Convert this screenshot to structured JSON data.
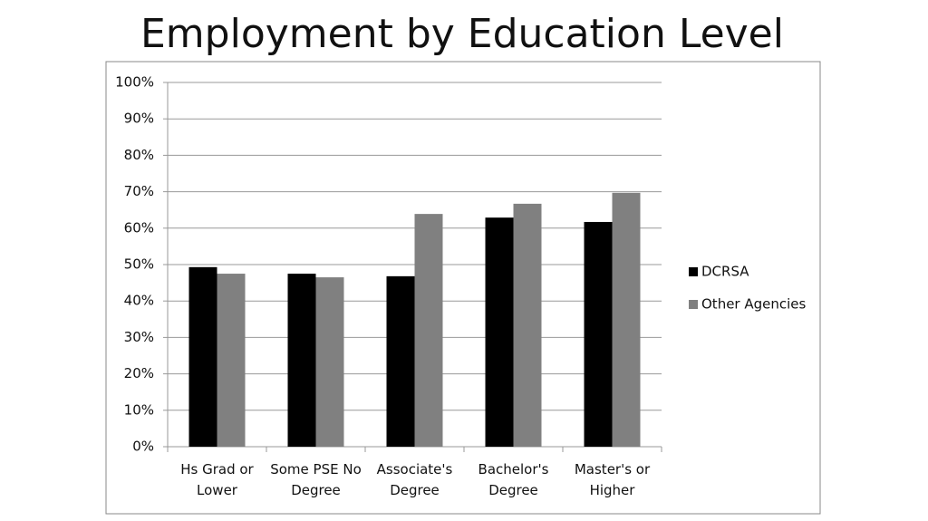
{
  "chart_data": {
    "type": "bar",
    "title": "Employment by Education Level",
    "categories": [
      "Hs Grad or Lower",
      "Some PSE No Degree",
      "Associate's Degree",
      "Bachelor's Degree",
      "Master's or Higher"
    ],
    "series": [
      {
        "name": "DCRSA",
        "color": "#000000",
        "values": [
          49.3,
          47.5,
          46.8,
          62.9,
          61.7
        ]
      },
      {
        "name": "Other Agencies",
        "color": "#808080",
        "values": [
          47.5,
          46.5,
          63.9,
          66.7,
          69.7
        ]
      }
    ],
    "ylim": [
      0,
      100
    ],
    "yticks": [
      {
        "value": 0,
        "label": "0%"
      },
      {
        "value": 10,
        "label": "10%"
      },
      {
        "value": 20,
        "label": "20%"
      },
      {
        "value": 30,
        "label": "30%"
      },
      {
        "value": 40,
        "label": "40%"
      },
      {
        "value": 50,
        "label": "50%"
      },
      {
        "value": 60,
        "label": "60%"
      },
      {
        "value": 70,
        "label": "70%"
      },
      {
        "value": 80,
        "label": "80%"
      },
      {
        "value": 90,
        "label": "90%"
      },
      {
        "value": 100,
        "label": "100%"
      }
    ],
    "grid": true
  }
}
